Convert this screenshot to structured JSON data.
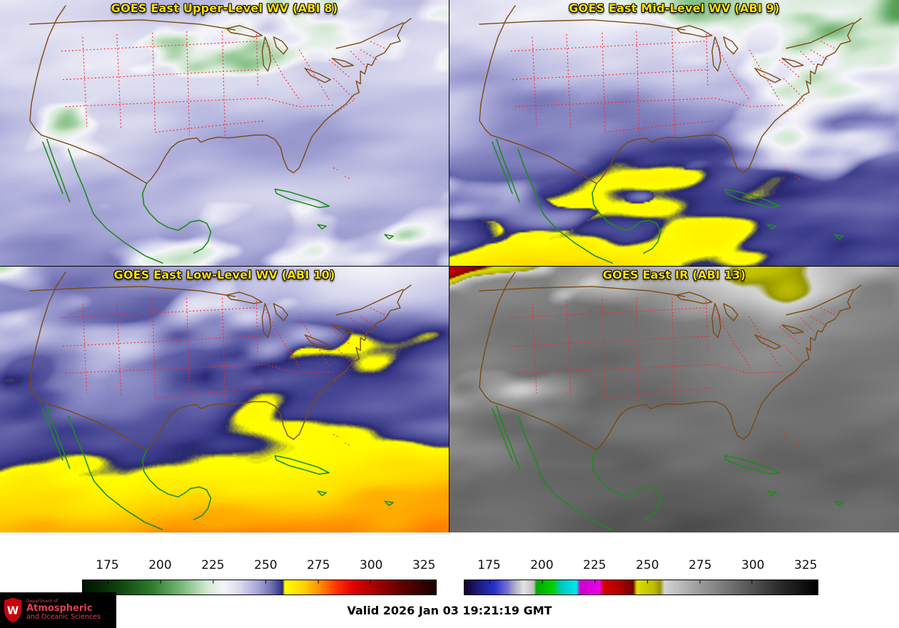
{
  "panels": [
    {
      "key": "abi8",
      "title": "GOES East Upper-Level WV (ABI 8)",
      "palette": "wv",
      "render": {
        "base": 244,
        "ygrad": 4,
        "amp": 12,
        "s": 0.016,
        "shear": 0.8,
        "seed": 11,
        "clamp": [
          206,
          258
        ],
        "layers": [
          {
            "amp": 30,
            "scale": 0.022,
            "thresh": 0.58,
            "weight": "none",
            "seed": 5
          }
        ]
      }
    },
    {
      "key": "abi9",
      "title": "GOES East Mid-Level WV (ABI 9)",
      "palette": "wv",
      "render": {
        "base": 250,
        "ygrad": 14,
        "amp": 16,
        "s": 0.015,
        "shear": 0.9,
        "seed": 22,
        "clamp": [
          204,
          282
        ],
        "layers": [
          {
            "amp": 26,
            "scale": 0.02,
            "thresh": 0.58,
            "weight": "none",
            "seed": 6
          }
        ]
      }
    },
    {
      "key": "abi10",
      "title": "GOES East Low-Level WV (ABI 10)",
      "palette": "wv",
      "render": {
        "base": 256,
        "ygrad": 16,
        "amp": 14,
        "s": 0.015,
        "shear": 0.7,
        "seed": 33,
        "clamp": [
          204,
          288
        ],
        "layers": [
          {
            "amp": 30,
            "scale": 0.018,
            "thresh": 0.56,
            "weight": "north",
            "seed": 7
          }
        ]
      }
    },
    {
      "key": "abi13",
      "title": "GOES East IR (ABI 13)",
      "palette": "ir",
      "render": {
        "base": 288,
        "ygrad": 6,
        "amp": 12,
        "s": 0.016,
        "shear": 0.5,
        "seed": 44,
        "clamp": [
          214,
          310
        ],
        "layers": [
          {
            "amp": 30,
            "scale": 0.014,
            "thresh": 0.52,
            "weight": "north",
            "seed": 8
          },
          {
            "amp": 48,
            "scale": 0.02,
            "thresh": 0.6,
            "weight": "nw",
            "seed": 9
          }
        ]
      }
    }
  ],
  "palettes": {
    "wv": {
      "range": [
        163,
        331
      ],
      "stops": [
        [
          163,
          "#001400"
        ],
        [
          178,
          "#0c3c0c"
        ],
        [
          196,
          "#2e7d2e"
        ],
        [
          210,
          "#7ab97a"
        ],
        [
          222,
          "#d2e8d2"
        ],
        [
          230,
          "#f5f5fa"
        ],
        [
          238,
          "#d8d8ee"
        ],
        [
          246,
          "#a8a8d8"
        ],
        [
          252,
          "#7878b8"
        ],
        [
          257,
          "#3c3c8c"
        ],
        [
          258,
          "#28286e"
        ],
        [
          259,
          "#ffff00"
        ],
        [
          268,
          "#ffd200"
        ],
        [
          276,
          "#ff8c00"
        ],
        [
          284,
          "#ff3000"
        ],
        [
          292,
          "#e00000"
        ],
        [
          302,
          "#a80000"
        ],
        [
          315,
          "#600000"
        ],
        [
          331,
          "#1a0000"
        ]
      ]
    },
    "ir": {
      "range": [
        163,
        331
      ],
      "stops": [
        [
          163,
          "#16002f"
        ],
        [
          169,
          "#1c1c78"
        ],
        [
          177,
          "#2830cc"
        ],
        [
          183,
          "#7070d4"
        ],
        [
          187,
          "#b0b0c4"
        ],
        [
          191,
          "#e4e4e4"
        ],
        [
          196,
          "#bcbcbc"
        ],
        [
          197,
          "#00aa00"
        ],
        [
          205,
          "#00d200"
        ],
        [
          209,
          "#00c8c8"
        ],
        [
          216,
          "#00e8e8"
        ],
        [
          218,
          "#cc00cc"
        ],
        [
          227,
          "#ee00ee"
        ],
        [
          229,
          "#d40000"
        ],
        [
          238,
          "#a80000"
        ],
        [
          243,
          "#6e0000"
        ],
        [
          245,
          "#e0e000"
        ],
        [
          253,
          "#bcbc00"
        ],
        [
          256,
          "#969600"
        ],
        [
          258,
          "#d4d4d4"
        ],
        [
          272,
          "#a4a4a4"
        ],
        [
          292,
          "#6a6a6a"
        ],
        [
          312,
          "#2e2e2e"
        ],
        [
          331,
          "#000000"
        ]
      ]
    }
  },
  "colorbars": [
    {
      "name": "wv-colorbar",
      "palette": "wv",
      "ticks": [
        175,
        200,
        225,
        250,
        275,
        300,
        325
      ]
    },
    {
      "name": "ir-colorbar",
      "palette": "ir",
      "ticks": [
        175,
        200,
        225,
        250,
        275,
        300,
        325
      ]
    }
  ],
  "footer": {
    "valid_time": "Valid 2026 Jan 03 19:21:19 GMT"
  },
  "logo": {
    "dept": "Department of",
    "line1": "Atmospheric",
    "line2": "and Oceanic Sciences",
    "letter": "W",
    "text_color": "#e04050",
    "crest_color": "#c5050c",
    "bg": "#000000"
  },
  "ui": {
    "title_color": "#ffe100",
    "background": "#ffffff"
  },
  "map_colors": {
    "state_borders": "#ff2626",
    "us_outline": "#7a4a12",
    "international": "#1e8c1e"
  }
}
